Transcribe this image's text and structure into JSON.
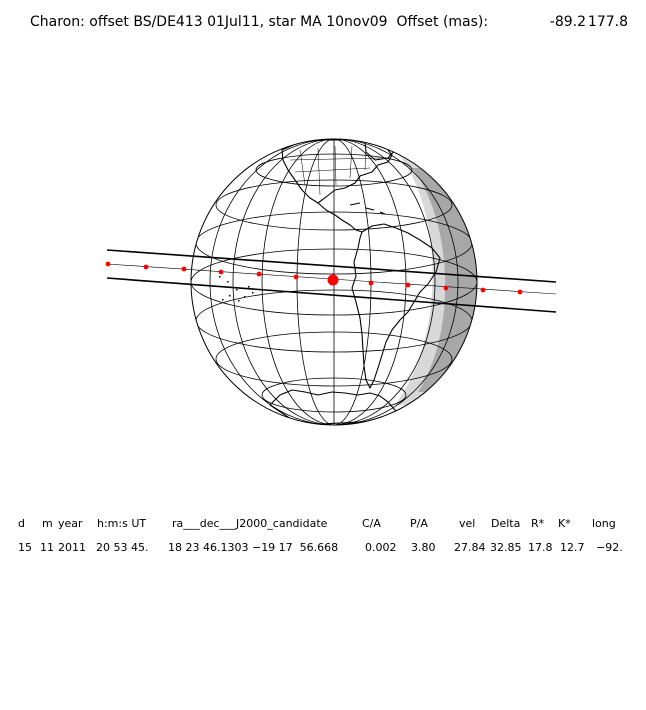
{
  "header": {
    "title": "Charon: offset BS/DE413 01Jul11, star MA 10nov09  Offset (mas):",
    "offset_x": "-89.2",
    "offset_y": "177.8"
  },
  "map": {
    "projection": "orthographic",
    "graticule": "15° latitude / longitude lines",
    "continents": [
      "North America",
      "Central America",
      "South America",
      "Antarctica"
    ],
    "shadow_track": "two black limit lines with red-dot centre line",
    "night_side": "grey shading on right limb",
    "colors": {
      "track_dots": "#ff0000",
      "night_light": "#d8d8d8",
      "night_dark": "#a8a8a8",
      "lines": "#000000"
    }
  },
  "table": {
    "headers": [
      "d",
      "m",
      "year",
      "h:m:s UT",
      "ra___dec___J2000_candidate",
      "C/A",
      "P/A",
      "vel",
      "Delta",
      "R*",
      "K*",
      "long"
    ],
    "row": [
      "15",
      "11",
      "2011",
      "20 53 45.",
      "18 23 46.1303 −19 17  56.668",
      "0.002",
      "3.80",
      "27.84",
      "32.85",
      "17.8",
      "12.7",
      "−92."
    ]
  }
}
